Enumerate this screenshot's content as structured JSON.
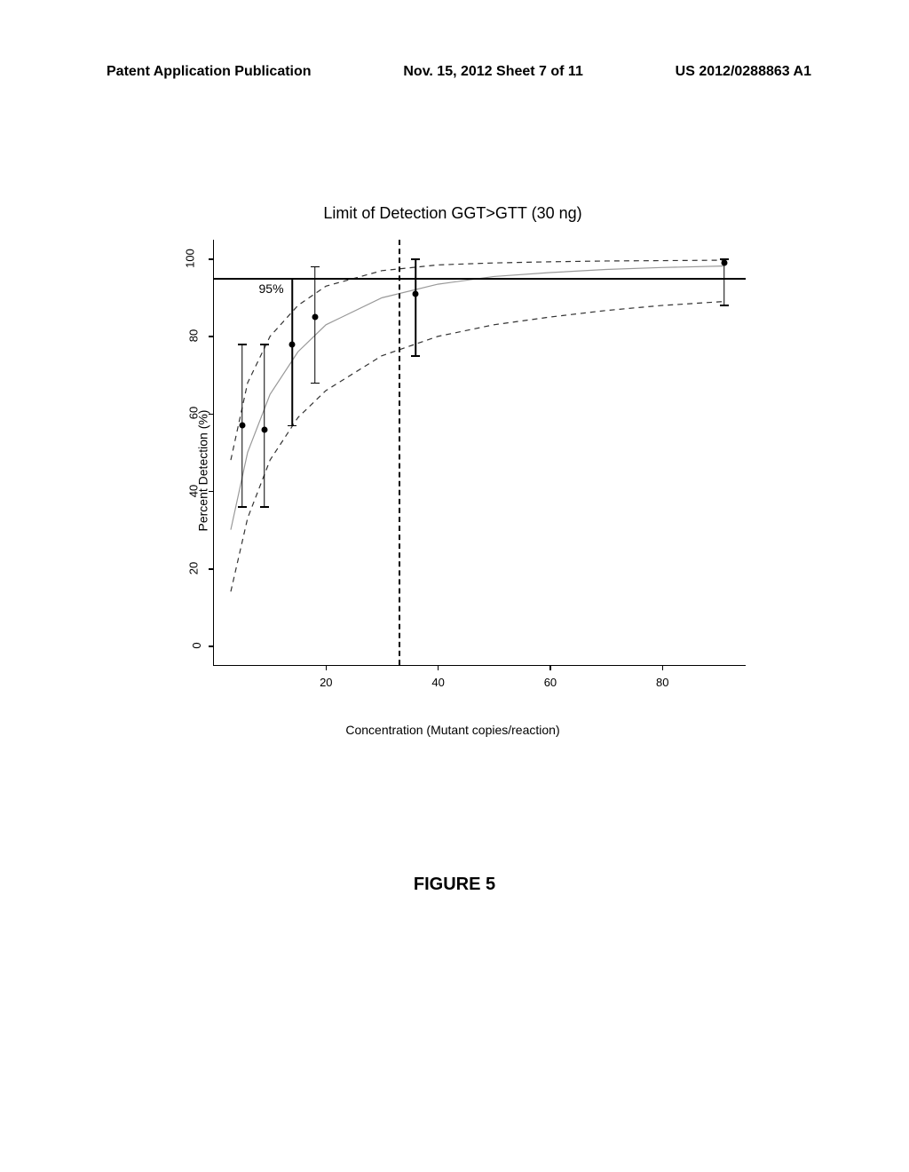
{
  "header": {
    "left": "Patent Application Publication",
    "center": "Nov. 15, 2012  Sheet 7 of 11",
    "right": "US 2012/0288863 A1"
  },
  "figure_caption": "FIGURE 5",
  "chart": {
    "type": "line",
    "title": "Limit of Detection GGT>GTT (30 ng)",
    "xlabel": "Concentration (Mutant copies/reaction)",
    "ylabel": "Percent Detection (%)",
    "xlim": [
      0,
      95
    ],
    "ylim": [
      -5,
      105
    ],
    "xticks": [
      20,
      40,
      60,
      80
    ],
    "yticks": [
      0,
      20,
      40,
      60,
      80,
      100
    ],
    "ref_h": {
      "y": 95,
      "label": "95%"
    },
    "ref_v_x": 33,
    "points": [
      {
        "x": 5,
        "y": 57,
        "lo": 36,
        "hi": 78
      },
      {
        "x": 9,
        "y": 56,
        "lo": 36,
        "hi": 78
      },
      {
        "x": 14,
        "y": 78,
        "lo": 57,
        "hi": 95
      },
      {
        "x": 18,
        "y": 85,
        "lo": 68,
        "hi": 98
      },
      {
        "x": 36,
        "y": 91,
        "lo": 75,
        "hi": 100
      },
      {
        "x": 91,
        "y": 99,
        "lo": 88,
        "hi": 100
      }
    ],
    "curves": {
      "mid": [
        [
          3,
          30
        ],
        [
          6,
          50
        ],
        [
          10,
          65
        ],
        [
          15,
          76
        ],
        [
          20,
          83
        ],
        [
          30,
          90
        ],
        [
          40,
          93.5
        ],
        [
          50,
          95.5
        ],
        [
          60,
          96.5
        ],
        [
          70,
          97.3
        ],
        [
          80,
          97.8
        ],
        [
          91,
          98.2
        ]
      ],
      "upper": [
        [
          3,
          48
        ],
        [
          6,
          68
        ],
        [
          10,
          80
        ],
        [
          15,
          88
        ],
        [
          20,
          93
        ],
        [
          30,
          97
        ],
        [
          40,
          98.5
        ],
        [
          50,
          99
        ],
        [
          60,
          99.3
        ],
        [
          70,
          99.5
        ],
        [
          80,
          99.6
        ],
        [
          91,
          99.7
        ]
      ],
      "lower": [
        [
          3,
          14
        ],
        [
          6,
          33
        ],
        [
          10,
          48
        ],
        [
          15,
          59
        ],
        [
          20,
          66
        ],
        [
          30,
          75
        ],
        [
          40,
          80
        ],
        [
          50,
          83
        ],
        [
          60,
          85
        ],
        [
          70,
          86.7
        ],
        [
          80,
          88
        ],
        [
          91,
          89
        ]
      ]
    },
    "colors": {
      "axis": "#000000",
      "points": "#000000",
      "mid_curve": "#999999",
      "ci_curve": "#333333",
      "ref": "#000000",
      "background": "#ffffff"
    },
    "title_fontsize": 18,
    "label_fontsize": 14,
    "tick_fontsize": 13,
    "line_width_mid": 1.2,
    "line_width_ci": 1.2,
    "ci_dash": "6,5",
    "point_radius": 3.5
  }
}
